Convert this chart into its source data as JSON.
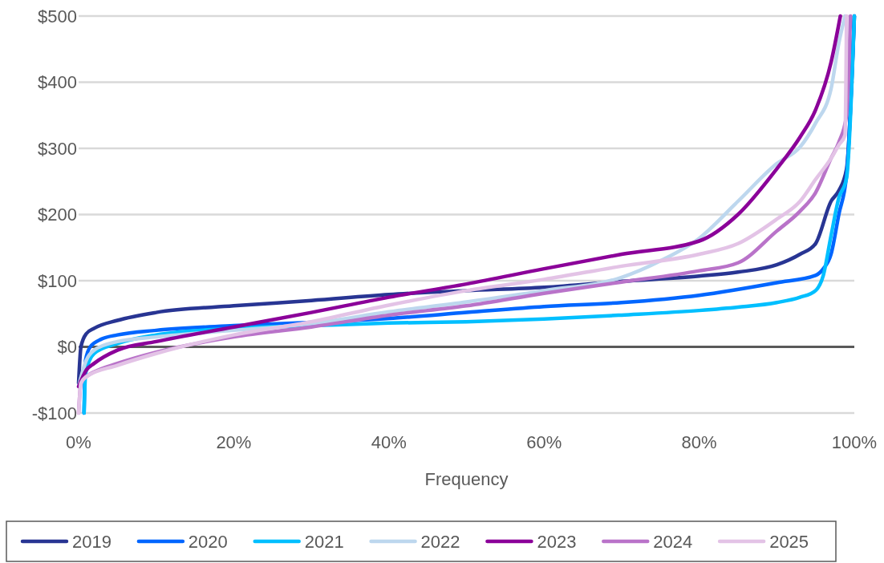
{
  "chart_data": {
    "type": "line",
    "xlabel": "Frequency",
    "xlim": [
      0,
      100
    ],
    "ylim": [
      -100,
      500
    ],
    "xticks": [
      {
        "value": 0,
        "label": "0%"
      },
      {
        "value": 20,
        "label": "20%"
      },
      {
        "value": 40,
        "label": "40%"
      },
      {
        "value": 60,
        "label": "60%"
      },
      {
        "value": 80,
        "label": "80%"
      },
      {
        "value": 100,
        "label": "100%"
      }
    ],
    "yticks": [
      {
        "value": -100,
        "label": "-$100"
      },
      {
        "value": 0,
        "label": "$0"
      },
      {
        "value": 100,
        "label": "$100"
      },
      {
        "value": 200,
        "label": "$200"
      },
      {
        "value": 300,
        "label": "$300"
      },
      {
        "value": 400,
        "label": "$400"
      },
      {
        "value": 500,
        "label": "$500"
      }
    ],
    "grid": "y",
    "legend": "bottom",
    "marker": "none",
    "line_style": "solid",
    "series": [
      {
        "name": "2019",
        "color": "#283593",
        "x": [
          0,
          0.3,
          1,
          2,
          5,
          10,
          20,
          30,
          40,
          50,
          60,
          70,
          80,
          85,
          90,
          93,
          95,
          97,
          98,
          99,
          100
        ],
        "values": [
          -55,
          0,
          20,
          28,
          40,
          52,
          62,
          70,
          79,
          85,
          90,
          99,
          107,
          113,
          124,
          140,
          156,
          220,
          236,
          269,
          500
        ]
      },
      {
        "name": "2020",
        "color": "#0066ff",
        "x": [
          0.7,
          0.9,
          1.5,
          3,
          5,
          10,
          20,
          30,
          40,
          50,
          60,
          70,
          80,
          90,
          95,
          96,
          97,
          98,
          99,
          100
        ],
        "values": [
          -100,
          -20,
          0,
          12,
          18,
          25,
          32,
          37,
          43,
          52,
          61,
          67,
          78,
          97,
          108,
          118,
          140,
          200,
          260,
          500
        ]
      },
      {
        "name": "2021",
        "color": "#00bfff",
        "x": [
          0.7,
          0.9,
          2,
          5,
          10,
          20,
          30,
          40,
          50,
          60,
          70,
          80,
          85,
          90,
          93,
          95,
          96,
          97,
          98,
          99,
          100
        ],
        "values": [
          -100,
          -40,
          -10,
          5,
          18,
          28,
          32,
          36,
          38,
          42,
          48,
          55,
          60,
          67,
          75,
          85,
          108,
          168,
          225,
          255,
          500
        ]
      },
      {
        "name": "2022",
        "color": "#bdd7ee",
        "x": [
          0,
          1,
          2,
          5,
          10,
          20,
          30,
          40,
          50,
          60,
          70,
          75,
          80,
          85,
          90,
          93,
          95,
          97,
          98,
          98.8
        ],
        "values": [
          -60,
          -20,
          -5,
          8,
          15,
          25,
          35,
          53,
          68,
          85,
          105,
          130,
          164,
          220,
          277,
          302,
          338,
          390,
          459,
          500
        ]
      },
      {
        "name": "2023",
        "color": "#8b0099",
        "x": [
          0,
          1,
          2,
          5,
          10,
          20,
          30,
          40,
          50,
          60,
          70,
          80,
          85,
          90,
          93,
          95,
          97,
          98.2
        ],
        "values": [
          -60,
          -35,
          -25,
          -5,
          8,
          30,
          52,
          75,
          95,
          118,
          140,
          160,
          200,
          269,
          317,
          358,
          430,
          500
        ]
      },
      {
        "name": "2024",
        "color": "#b973c9",
        "x": [
          0,
          0.3,
          1,
          2,
          5,
          10,
          20,
          30,
          40,
          50,
          60,
          70,
          80,
          85,
          90,
          93,
          95,
          97,
          98,
          99,
          99.5
        ],
        "values": [
          -100,
          -55,
          -45,
          -38,
          -25,
          -8,
          15,
          30,
          48,
          62,
          81,
          98,
          115,
          127,
          175,
          205,
          233,
          285,
          309,
          350,
          500
        ]
      },
      {
        "name": "2025",
        "color": "#e3c3e6",
        "x": [
          0,
          0.3,
          1,
          5,
          10,
          20,
          30,
          40,
          50,
          60,
          70,
          80,
          85,
          90,
          93,
          95,
          97,
          98,
          98.8,
          99
        ],
        "values": [
          -100,
          -55,
          -45,
          -28,
          -10,
          18,
          38,
          63,
          85,
          102,
          122,
          140,
          156,
          193,
          220,
          253,
          285,
          305,
          320,
          500
        ]
      }
    ]
  }
}
